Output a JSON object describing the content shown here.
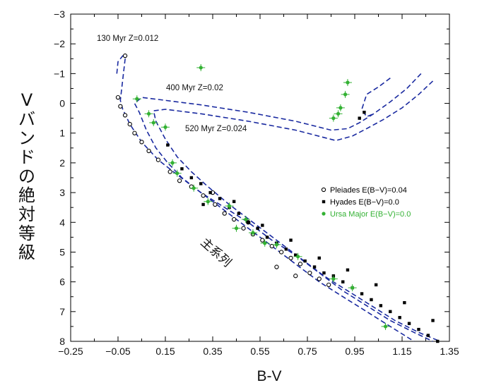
{
  "chart_data": {
    "type": "scatter",
    "title": "",
    "xlabel": "B-V",
    "ylabel": "Vバンドの絶対等級",
    "xlim": [
      -0.25,
      1.35
    ],
    "ylim": [
      -3,
      8
    ],
    "y_inverted": true,
    "grid": false,
    "legend_position": "center-right",
    "x_ticks": [
      "−0.25",
      "−0.05",
      "0.15",
      "0.35",
      "0.55",
      "0.75",
      "0.95",
      "1.15",
      "1.35"
    ],
    "x_tick_values": [
      -0.25,
      -0.05,
      0.15,
      0.35,
      0.55,
      0.75,
      0.95,
      1.15,
      1.35
    ],
    "y_ticks": [
      "−3",
      "−2",
      "−1",
      "0",
      "1",
      "2",
      "3",
      "4",
      "5",
      "6",
      "7",
      "8"
    ],
    "y_tick_values": [
      -3,
      -2,
      -1,
      0,
      1,
      2,
      3,
      4,
      5,
      6,
      7,
      8
    ],
    "main_sequence_label": "主系列",
    "annotations": [
      {
        "text": "130 Myr  Z=0.012",
        "x": 0.02,
        "y": -2.3
      },
      {
        "text": "400 Myr  Z=0.02",
        "x": 0.255,
        "y": -0.3
      },
      {
        "text": "520 Myr  Z=0.024",
        "x": 0.38,
        "y": 0.85
      }
    ],
    "series": [
      {
        "name": "Pleiades E(B−V)=0.04",
        "marker": "open-circle",
        "color": "#000000",
        "points": [
          [
            -0.02,
            -1.6
          ],
          [
            -0.05,
            -0.2
          ],
          [
            -0.04,
            0.1
          ],
          [
            -0.02,
            0.4
          ],
          [
            0.0,
            0.7
          ],
          [
            0.02,
            1.0
          ],
          [
            0.05,
            1.3
          ],
          [
            0.08,
            1.6
          ],
          [
            0.12,
            1.9
          ],
          [
            0.17,
            2.3
          ],
          [
            0.21,
            2.6
          ],
          [
            0.26,
            2.8
          ],
          [
            0.31,
            3.1
          ],
          [
            0.36,
            3.4
          ],
          [
            0.4,
            3.7
          ],
          [
            0.44,
            3.9
          ],
          [
            0.48,
            4.2
          ],
          [
            0.52,
            4.4
          ],
          [
            0.56,
            4.6
          ],
          [
            0.6,
            4.8
          ],
          [
            0.64,
            5.0
          ],
          [
            0.68,
            5.2
          ],
          [
            0.72,
            5.4
          ],
          [
            0.76,
            5.7
          ],
          [
            0.8,
            5.9
          ],
          [
            0.84,
            6.1
          ],
          [
            0.62,
            5.5
          ],
          [
            0.7,
            5.8
          ],
          [
            0.5,
            4.0
          ],
          [
            0.35,
            3.0
          ]
        ]
      },
      {
        "name": "Hyades E(B−V)=0.0",
        "marker": "filled-circle",
        "color": "#000000",
        "points": [
          [
            0.16,
            1.4
          ],
          [
            0.22,
            2.2
          ],
          [
            0.26,
            2.5
          ],
          [
            0.3,
            2.7
          ],
          [
            0.34,
            3.0
          ],
          [
            0.38,
            3.2
          ],
          [
            0.42,
            3.5
          ],
          [
            0.46,
            3.7
          ],
          [
            0.5,
            4.0
          ],
          [
            0.54,
            4.2
          ],
          [
            0.58,
            4.5
          ],
          [
            0.62,
            4.7
          ],
          [
            0.66,
            4.9
          ],
          [
            0.7,
            5.1
          ],
          [
            0.74,
            5.3
          ],
          [
            0.78,
            5.5
          ],
          [
            0.82,
            5.7
          ],
          [
            0.86,
            5.8
          ],
          [
            0.9,
            6.0
          ],
          [
            0.94,
            6.2
          ],
          [
            0.98,
            6.4
          ],
          [
            1.02,
            6.6
          ],
          [
            1.06,
            6.8
          ],
          [
            1.1,
            7.0
          ],
          [
            1.14,
            7.2
          ],
          [
            1.18,
            7.4
          ],
          [
            1.22,
            7.6
          ],
          [
            1.26,
            7.8
          ],
          [
            1.3,
            8.0
          ],
          [
            0.97,
            0.5
          ],
          [
            0.99,
            0.3
          ],
          [
            0.31,
            3.4
          ],
          [
            0.44,
            3.3
          ],
          [
            0.56,
            4.1
          ],
          [
            0.68,
            4.6
          ],
          [
            0.8,
            5.2
          ],
          [
            0.92,
            5.6
          ],
          [
            1.04,
            6.1
          ],
          [
            1.16,
            6.7
          ],
          [
            1.28,
            7.3
          ]
        ]
      },
      {
        "name": "Ursa Major E(B−V)=0.0",
        "marker": "green-cross",
        "color": "#33b133",
        "points": [
          [
            0.3,
            -1.2
          ],
          [
            0.92,
            -0.7
          ],
          [
            0.91,
            -0.3
          ],
          [
            0.89,
            0.15
          ],
          [
            0.88,
            0.35
          ],
          [
            0.86,
            0.5
          ],
          [
            0.03,
            -0.15
          ],
          [
            0.08,
            0.35
          ],
          [
            0.1,
            0.65
          ],
          [
            0.15,
            0.8
          ],
          [
            0.18,
            2.0
          ],
          [
            0.2,
            2.35
          ],
          [
            0.27,
            2.85
          ],
          [
            0.33,
            3.3
          ],
          [
            0.42,
            3.45
          ],
          [
            0.49,
            3.9
          ],
          [
            0.57,
            4.7
          ],
          [
            0.62,
            4.75
          ],
          [
            0.71,
            5.15
          ],
          [
            0.86,
            5.9
          ],
          [
            0.94,
            6.2
          ],
          [
            1.08,
            7.5
          ],
          [
            0.45,
            4.2
          ],
          [
            0.52,
            4.35
          ]
        ]
      }
    ],
    "isochrones": [
      {
        "label": "130 Myr  Z=0.012",
        "color": "#1a2aa0",
        "points": [
          [
            -0.055,
            -1.0
          ],
          [
            -0.05,
            -1.4
          ],
          [
            -0.03,
            -1.6
          ],
          [
            -0.02,
            -1.5
          ],
          [
            -0.04,
            -0.1
          ],
          [
            -0.03,
            0.2
          ],
          [
            0.0,
            0.7
          ],
          [
            0.05,
            1.3
          ],
          [
            0.12,
            1.9
          ],
          [
            0.2,
            2.4
          ],
          [
            0.3,
            3.0
          ],
          [
            0.4,
            3.6
          ],
          [
            0.5,
            4.2
          ],
          [
            0.6,
            4.8
          ],
          [
            0.7,
            5.4
          ],
          [
            0.8,
            6.0
          ],
          [
            0.9,
            6.5
          ],
          [
            1.0,
            7.0
          ],
          [
            1.1,
            7.5
          ],
          [
            1.2,
            8.0
          ]
        ]
      },
      {
        "label": "400 Myr  Z=0.02",
        "color": "#1a2aa0",
        "points": [
          [
            1.23,
            -1.0
          ],
          [
            1.17,
            -0.5
          ],
          [
            1.1,
            -0.05
          ],
          [
            1.03,
            0.35
          ],
          [
            0.97,
            0.65
          ],
          [
            0.92,
            0.85
          ],
          [
            0.85,
            0.9
          ],
          [
            0.7,
            0.6
          ],
          [
            0.5,
            0.3
          ],
          [
            0.3,
            0.05
          ],
          [
            0.15,
            -0.1
          ],
          [
            0.05,
            -0.2
          ],
          [
            0.02,
            0.0
          ],
          [
            0.04,
            0.3
          ],
          [
            0.07,
            0.9
          ],
          [
            0.11,
            1.5
          ],
          [
            0.16,
            2.0
          ],
          [
            0.22,
            2.5
          ],
          [
            0.3,
            3.0
          ],
          [
            0.4,
            3.5
          ],
          [
            0.5,
            4.0
          ],
          [
            0.6,
            4.6
          ],
          [
            0.7,
            5.1
          ],
          [
            0.8,
            5.7
          ],
          [
            0.9,
            6.3
          ],
          [
            1.0,
            6.8
          ],
          [
            1.1,
            7.3
          ],
          [
            1.2,
            7.7
          ],
          [
            1.28,
            8.0
          ]
        ]
      },
      {
        "label": "520 Myr  Z=0.024",
        "color": "#1a2aa0",
        "points": [
          [
            1.28,
            -0.75
          ],
          [
            1.22,
            -0.3
          ],
          [
            1.15,
            0.15
          ],
          [
            1.07,
            0.55
          ],
          [
            1.0,
            0.85
          ],
          [
            0.94,
            1.1
          ],
          [
            0.87,
            1.25
          ],
          [
            0.7,
            0.9
          ],
          [
            0.5,
            0.6
          ],
          [
            0.3,
            0.35
          ],
          [
            0.15,
            0.2
          ],
          [
            0.1,
            0.25
          ],
          [
            0.11,
            0.6
          ],
          [
            0.15,
            1.2
          ],
          [
            0.2,
            1.8
          ],
          [
            0.26,
            2.3
          ],
          [
            0.33,
            2.8
          ],
          [
            0.42,
            3.4
          ],
          [
            0.52,
            4.0
          ],
          [
            0.62,
            4.6
          ],
          [
            0.72,
            5.2
          ],
          [
            0.82,
            5.8
          ],
          [
            0.92,
            6.3
          ],
          [
            1.02,
            6.8
          ],
          [
            1.12,
            7.3
          ],
          [
            1.22,
            7.7
          ],
          [
            1.31,
            8.0
          ]
        ]
      },
      {
        "label": "",
        "color": "#1a2aa0",
        "points": [
          [
            1.1,
            -0.85
          ],
          [
            1.05,
            -0.55
          ],
          [
            1.0,
            -0.3
          ],
          [
            0.98,
            0.2
          ],
          [
            1.0,
            0.45
          ],
          [
            1.03,
            0.35
          ]
        ]
      }
    ]
  }
}
